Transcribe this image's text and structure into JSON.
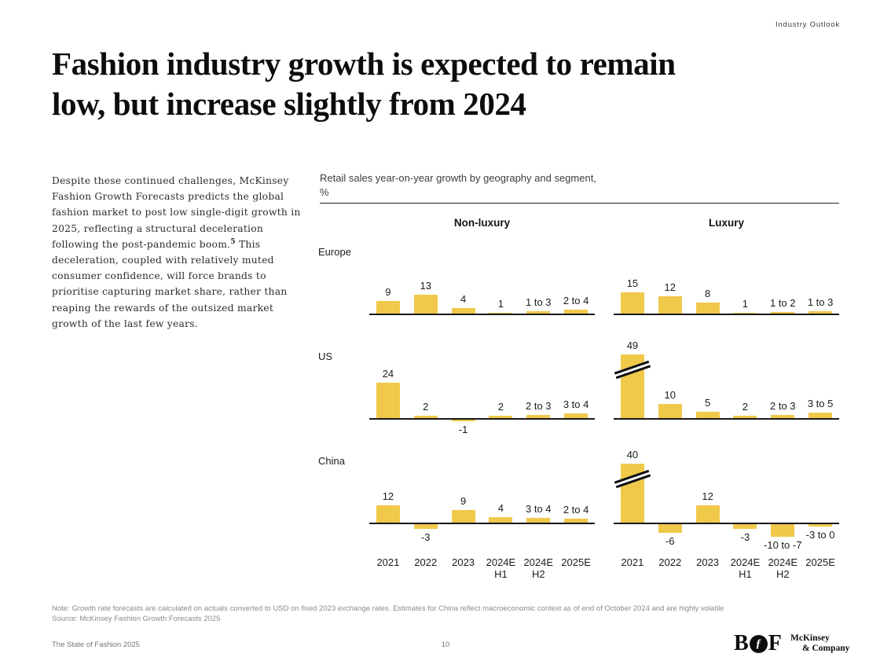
{
  "header": {
    "eyebrow": "Industry Outlook"
  },
  "title": {
    "line1": "Fashion industry growth is expected to remain",
    "line2": "low, but increase slightly from 2024"
  },
  "body": {
    "part1": "Despite these continued challenges, McKinsey Fashion Growth Forecasts predicts the global fashion market to post low single-digit growth in 2025, reflecting a structural deceleration following the post-pandemic boom.",
    "footnote": "5",
    "part2": " This deceleration, coupled with relatively muted consumer confidence, will force brands to prioritise capturing market share, rather than reaping the rewards of the outsized market growth of the last few years."
  },
  "chart_data": {
    "type": "bar",
    "title": "Retail sales year-on-year growth by geography and segment,",
    "unit": "%",
    "bar_color": "#F0C94B",
    "axis_color": "#181818",
    "column_headers": [
      "Non-luxury",
      "Luxury"
    ],
    "x_labels": [
      {
        "line1": "2021",
        "line2": ""
      },
      {
        "line1": "2022",
        "line2": ""
      },
      {
        "line1": "2023",
        "line2": ""
      },
      {
        "line1": "2024E",
        "line2": "H1"
      },
      {
        "line1": "2024E",
        "line2": "H2"
      },
      {
        "line1": "2025E",
        "line2": ""
      }
    ],
    "rows": [
      {
        "region": "Europe",
        "panels": [
          {
            "segment": "Non-luxury",
            "bars": [
              {
                "label": "9",
                "value": 9
              },
              {
                "label": "13",
                "value": 13
              },
              {
                "label": "4",
                "value": 4
              },
              {
                "label": "1",
                "value": 1
              },
              {
                "label": "1 to 3",
                "value": 2
              },
              {
                "label": "2 to 4",
                "value": 3
              }
            ]
          },
          {
            "segment": "Luxury",
            "bars": [
              {
                "label": "15",
                "value": 15
              },
              {
                "label": "12",
                "value": 12
              },
              {
                "label": "8",
                "value": 8
              },
              {
                "label": "1",
                "value": 1
              },
              {
                "label": "1 to 2",
                "value": 1.5
              },
              {
                "label": "1 to 3",
                "value": 2
              }
            ]
          }
        ]
      },
      {
        "region": "US",
        "panels": [
          {
            "segment": "Non-luxury",
            "bars": [
              {
                "label": "24",
                "value": 24
              },
              {
                "label": "2",
                "value": 2
              },
              {
                "label": "-1",
                "value": -1
              },
              {
                "label": "2",
                "value": 2
              },
              {
                "label": "2 to 3",
                "value": 2.5
              },
              {
                "label": "3 to 4",
                "value": 3.5
              }
            ]
          },
          {
            "segment": "Luxury",
            "bars": [
              {
                "label": "49",
                "value": 49,
                "truncated": true
              },
              {
                "label": "10",
                "value": 10
              },
              {
                "label": "5",
                "value": 5
              },
              {
                "label": "2",
                "value": 2
              },
              {
                "label": "2 to 3",
                "value": 2.5
              },
              {
                "label": "3 to 5",
                "value": 4
              }
            ]
          }
        ]
      },
      {
        "region": "China",
        "panels": [
          {
            "segment": "Non-luxury",
            "bars": [
              {
                "label": "12",
                "value": 12
              },
              {
                "label": "-3",
                "value": -3
              },
              {
                "label": "9",
                "value": 9
              },
              {
                "label": "4",
                "value": 4
              },
              {
                "label": "3 to 4",
                "value": 3.5
              },
              {
                "label": "2 to 4",
                "value": 3
              }
            ]
          },
          {
            "segment": "Luxury",
            "bars": [
              {
                "label": "40",
                "value": 40,
                "truncated": true
              },
              {
                "label": "-6",
                "value": -6
              },
              {
                "label": "12",
                "value": 12
              },
              {
                "label": "-3",
                "value": -3
              },
              {
                "label": "-10 to -7",
                "value": -8.5
              },
              {
                "label": "-3 to 0",
                "value": -1.5
              }
            ]
          }
        ]
      }
    ]
  },
  "footnotes": {
    "note": "Note: Growth rate forecasts are calculated on actuals converted to USD on fixed 2023 exchange rates. Estimates for China reflect macroeconomic context as of end of October 2024 and are highly volatile",
    "source": "Source: McKinsey Fashion Growth Forecasts 2025"
  },
  "footer": {
    "report": "The State of Fashion 2025",
    "page": "10",
    "bof": {
      "b": "B",
      "monogram": "ƒ",
      "f": "F"
    },
    "mckinsey": {
      "line1": "McKinsey",
      "line2": "& Company"
    }
  }
}
